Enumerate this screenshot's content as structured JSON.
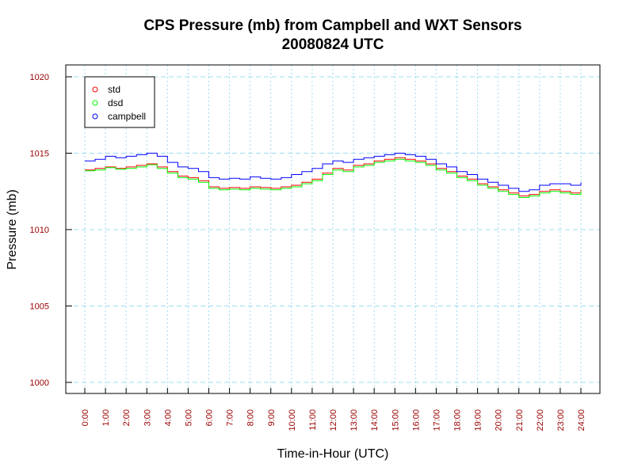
{
  "chart_data": {
    "type": "line",
    "title": "CPS Pressure (mb) from Campbell and WXT Sensors",
    "subtitle": "20080824  UTC",
    "xlabel": "Time-in-Hour (UTC)",
    "ylabel": "Pressure (mb)",
    "xlim": [
      0,
      24
    ],
    "ylim": [
      1000,
      1020
    ],
    "x_ticks": [
      0,
      1,
      2,
      3,
      4,
      5,
      6,
      7,
      8,
      9,
      10,
      11,
      12,
      13,
      14,
      15,
      16,
      17,
      18,
      19,
      20,
      21,
      22,
      23,
      24
    ],
    "x_tick_labels": [
      "0:00",
      "1:00",
      "2:00",
      "3:00",
      "4:00",
      "5:00",
      "6:00",
      "7:00",
      "8:00",
      "9:00",
      "10:00",
      "11:00",
      "12:00",
      "13:00",
      "14:00",
      "15:00",
      "16:00",
      "17:00",
      "18:00",
      "19:00",
      "20:00",
      "21:00",
      "22:00",
      "23:00",
      "24:00"
    ],
    "y_ticks": [
      1000,
      1005,
      1010,
      1015,
      1020
    ],
    "y_tick_labels": [
      "1000",
      "1005",
      "1010",
      "1015",
      "1020"
    ],
    "grid": true,
    "legend_position": "top-left",
    "x": [
      0,
      0.5,
      1,
      1.5,
      2,
      2.5,
      3,
      3.5,
      4,
      4.5,
      5,
      5.5,
      6,
      6.5,
      7,
      7.5,
      8,
      8.5,
      9,
      9.5,
      10,
      10.5,
      11,
      11.5,
      12,
      12.5,
      13,
      13.5,
      14,
      14.5,
      15,
      15.5,
      16,
      16.5,
      17,
      17.5,
      18,
      18.5,
      19,
      19.5,
      20,
      20.5,
      21,
      21.5,
      22,
      22.5,
      23,
      23.5,
      24
    ],
    "series": [
      {
        "name": "std",
        "color": "#ff0000",
        "values": [
          1013.9,
          1014.0,
          1014.1,
          1014.0,
          1014.1,
          1014.2,
          1014.3,
          1014.1,
          1013.8,
          1013.5,
          1013.4,
          1013.2,
          1012.8,
          1012.7,
          1012.75,
          1012.7,
          1012.8,
          1012.75,
          1012.7,
          1012.8,
          1012.9,
          1013.1,
          1013.3,
          1013.7,
          1014.0,
          1013.9,
          1014.2,
          1014.3,
          1014.5,
          1014.6,
          1014.7,
          1014.6,
          1014.5,
          1014.3,
          1014.0,
          1013.8,
          1013.5,
          1013.3,
          1013.0,
          1012.8,
          1012.6,
          1012.4,
          1012.2,
          1012.3,
          1012.5,
          1012.6,
          1012.5,
          1012.4,
          1012.6
        ]
      },
      {
        "name": "dsd",
        "color": "#00ff00",
        "values": [
          1013.85,
          1013.9,
          1014.05,
          1013.95,
          1014.0,
          1014.1,
          1014.25,
          1014.0,
          1013.7,
          1013.4,
          1013.3,
          1013.1,
          1012.7,
          1012.6,
          1012.65,
          1012.6,
          1012.7,
          1012.65,
          1012.6,
          1012.7,
          1012.8,
          1013.0,
          1013.2,
          1013.6,
          1013.9,
          1013.8,
          1014.1,
          1014.2,
          1014.4,
          1014.5,
          1014.6,
          1014.5,
          1014.4,
          1014.2,
          1013.9,
          1013.7,
          1013.4,
          1013.2,
          1012.9,
          1012.7,
          1012.5,
          1012.3,
          1012.1,
          1012.2,
          1012.4,
          1012.5,
          1012.4,
          1012.3,
          1012.5
        ]
      },
      {
        "name": "campbell",
        "color": "#0000ff",
        "values": [
          1014.5,
          1014.6,
          1014.8,
          1014.7,
          1014.8,
          1014.9,
          1015.0,
          1014.8,
          1014.4,
          1014.1,
          1014.0,
          1013.8,
          1013.4,
          1013.3,
          1013.35,
          1013.3,
          1013.45,
          1013.35,
          1013.3,
          1013.4,
          1013.6,
          1013.8,
          1014.0,
          1014.3,
          1014.5,
          1014.4,
          1014.6,
          1014.7,
          1014.8,
          1014.9,
          1015.0,
          1014.9,
          1014.8,
          1014.6,
          1014.3,
          1014.1,
          1013.8,
          1013.6,
          1013.3,
          1013.1,
          1012.9,
          1012.7,
          1012.5,
          1012.6,
          1012.9,
          1013.0,
          1013.0,
          1012.9,
          1013.1
        ]
      }
    ]
  }
}
